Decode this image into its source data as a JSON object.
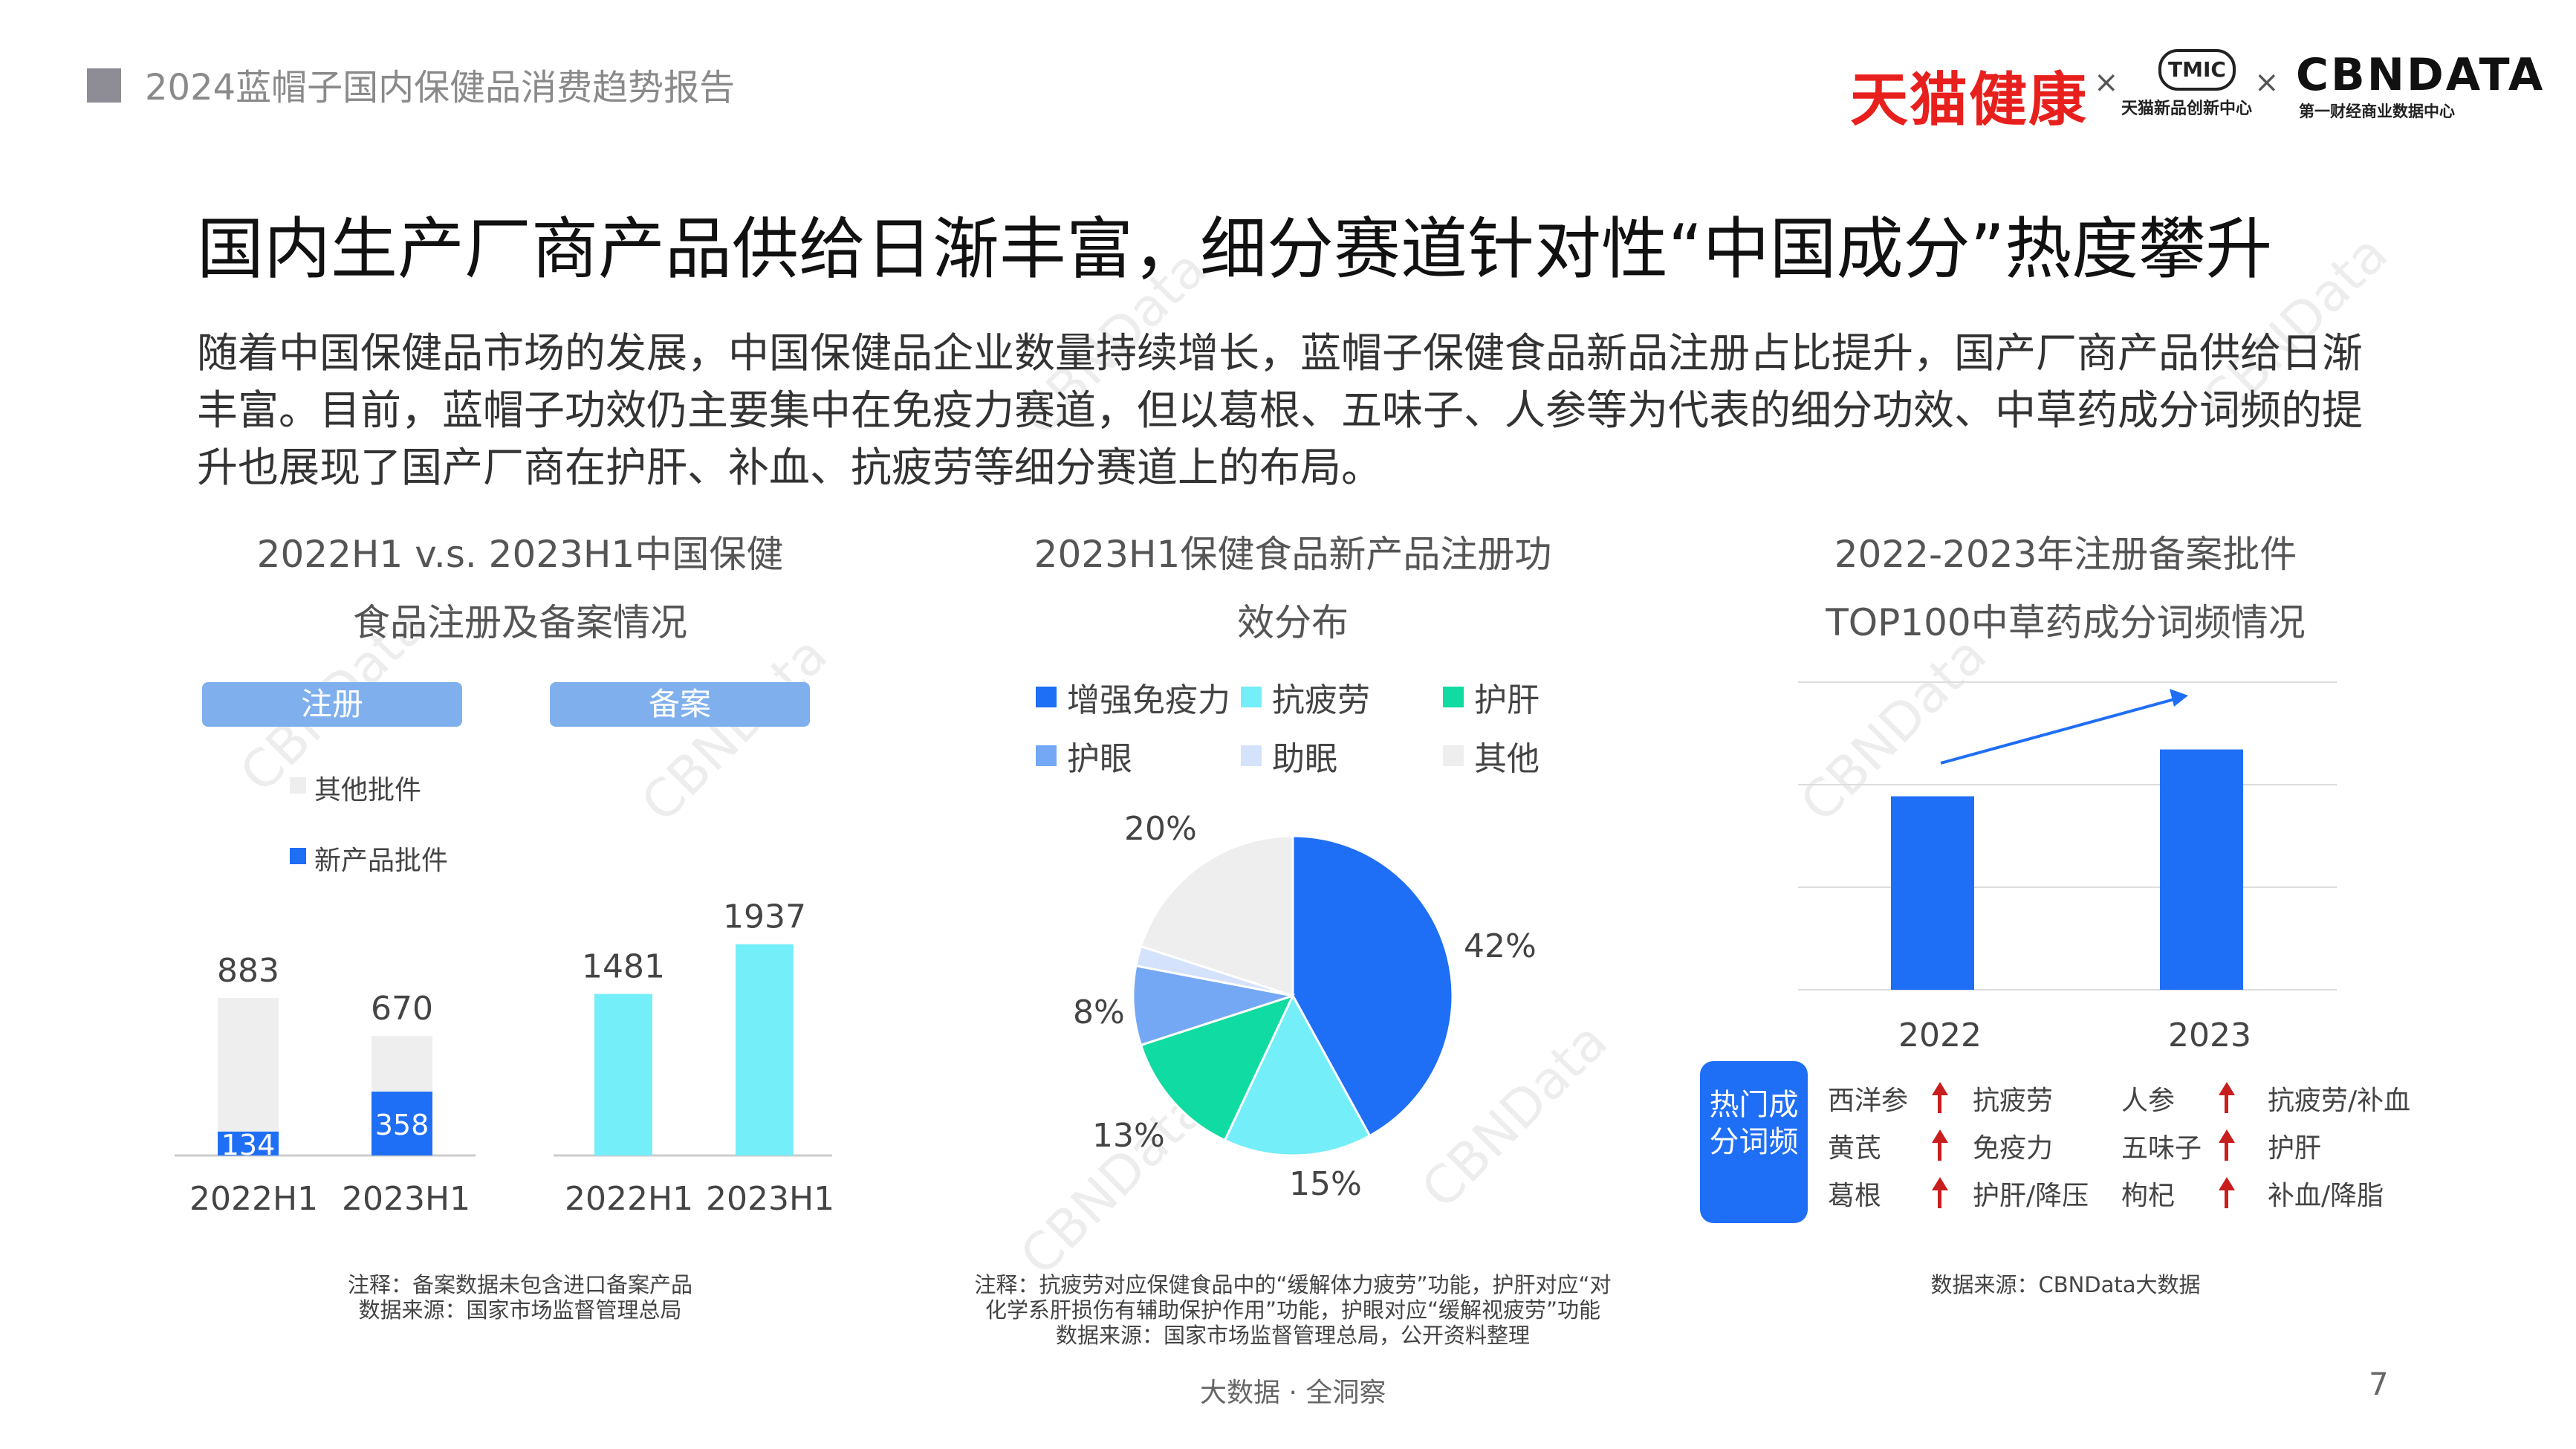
{
  "header": {
    "report_title": "2024蓝帽子国内保健品消费趋势报告"
  },
  "logos": {
    "brand1": "天猫健康",
    "separator": "×",
    "brand2": "TMIC",
    "brand2_sub": "天猫新品创新中心",
    "brand3": "CBNDATA",
    "brand3_sub": "第一财经商业数据中心"
  },
  "page_title": "国内生产厂商产品供给日渐丰富，细分赛道针对性“中国成分”热度攀升",
  "intro_paragraph": "随着中国保健品市场的发展，中国保健品企业数量持续增长，蓝帽子保健食品新品注册占比提升，国产厂商产品供给日渐丰富。目前，蓝帽子功效仍主要集中在免疫力赛道，但以葛根、五味子、人参等为代表的细分功效、中草药成分词频的提升也展现了国产厂商在护肝、补血、抗疲劳等细分赛道上的布局。",
  "chart1": {
    "title_line1": "2022H1 v.s. 2023H1中国保健",
    "title_line2": "食品注册及备案情况",
    "pill_register": "注册",
    "pill_filing": "备案",
    "note_line1": "注释：备案数据未包含进口备案产品",
    "note_line2": "数据来源：国家市场监督管理总局"
  },
  "chart2": {
    "title_line1": "2023H1保健食品新产品注册功",
    "title_line2": "效分布",
    "note_line1": "注释：抗疲劳对应保健食品中的“缓解体力疲劳”功能，护肝对应“对",
    "note_line2": "化学系肝损伤有辅助保护作用”功能，护眼对应“缓解视疲劳”功能",
    "note_line3": "数据来源：国家市场监督管理总局，公开资料整理"
  },
  "chart3": {
    "title_line1": "2022-2023年注册备案批件",
    "title_line2": "TOP100中草药成分词频情况",
    "hot_badge": "热门成分词频",
    "hot_terms": [
      {
        "herb": "西洋参",
        "effect": "抗疲劳"
      },
      {
        "herb": "人参",
        "effect": "抗疲劳/补血"
      },
      {
        "herb": "黄芪",
        "effect": "免疫力"
      },
      {
        "herb": "五味子",
        "effect": "护肝"
      },
      {
        "herb": "葛根",
        "effect": "护肝/降压"
      },
      {
        "herb": "枸杞",
        "effect": "补血/降脂"
      }
    ],
    "note_line1": "数据来源：CBNData大数据"
  },
  "chart_data": [
    {
      "type": "bar",
      "group": "注册",
      "categories": [
        "2022H1",
        "2023H1"
      ],
      "series": [
        {
          "name": "新产品批件",
          "values": [
            134,
            358
          ]
        },
        {
          "name": "其他批件",
          "values": [
            749,
            312
          ]
        }
      ],
      "totals": [
        883,
        670
      ],
      "stacked": true,
      "colors": {
        "新产品批件": "#1f6ef6",
        "其他批件": "#eeeeee"
      }
    },
    {
      "type": "bar",
      "group": "备案",
      "categories": [
        "2022H1",
        "2023H1"
      ],
      "values": [
        1481,
        1937
      ],
      "color": "#74eef8"
    },
    {
      "type": "pie",
      "legend": [
        "增强免疫力",
        "抗疲劳",
        "护肝",
        "护眼",
        "助眠",
        "其他"
      ],
      "slices": [
        {
          "label": "增强免疫力",
          "value": 42,
          "color": "#1f6ef6",
          "text": "42%"
        },
        {
          "label": "抗疲劳",
          "value": 15,
          "color": "#74eef8",
          "text": "15%"
        },
        {
          "label": "护肝",
          "value": 13,
          "color": "#10dba2",
          "text": "13%"
        },
        {
          "label": "护眼",
          "value": 8,
          "color": "#74a8f4",
          "text": "8%"
        },
        {
          "label": "助眠",
          "value": 2,
          "color": "#d4e2fb",
          "text": ""
        },
        {
          "label": "其他",
          "value": 20,
          "color": "#eeeeee",
          "text": "20%"
        }
      ]
    },
    {
      "type": "bar",
      "categories": [
        "2022",
        "2023"
      ],
      "values": [
        62,
        77
      ],
      "ylim": [
        0,
        100
      ],
      "grid": true,
      "trend_arrow": "upward",
      "color": "#1f6ef6"
    }
  ],
  "footer": {
    "tagline": "大数据 · 全洞察",
    "page_number": "7"
  }
}
